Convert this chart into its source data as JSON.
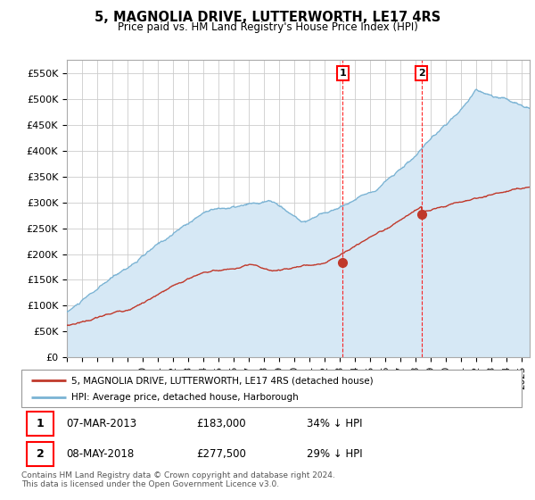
{
  "title": "5, MAGNOLIA DRIVE, LUTTERWORTH, LE17 4RS",
  "subtitle": "Price paid vs. HM Land Registry's House Price Index (HPI)",
  "ylabel_ticks": [
    "£0",
    "£50K",
    "£100K",
    "£150K",
    "£200K",
    "£250K",
    "£300K",
    "£350K",
    "£400K",
    "£450K",
    "£500K",
    "£550K"
  ],
  "ylabel_values": [
    0,
    50000,
    100000,
    150000,
    200000,
    250000,
    300000,
    350000,
    400000,
    450000,
    500000,
    550000
  ],
  "ylim": [
    0,
    575000
  ],
  "xlim_left": 1995.0,
  "xlim_right": 2025.5,
  "hpi_color": "#7ab3d4",
  "price_color": "#c0392b",
  "hpi_fill_color": "#d6e8f5",
  "annotation_color": "#c0392b",
  "point1_x": 2013.18,
  "point1_y": 183000,
  "point2_x": 2018.37,
  "point2_y": 277500,
  "legend_house": "5, MAGNOLIA DRIVE, LUTTERWORTH, LE17 4RS (detached house)",
  "legend_hpi": "HPI: Average price, detached house, Harborough",
  "table_row1": [
    "1",
    "07-MAR-2013",
    "£183,000",
    "34% ↓ HPI"
  ],
  "table_row2": [
    "2",
    "08-MAY-2018",
    "£277,500",
    "29% ↓ HPI"
  ],
  "footer": "Contains HM Land Registry data © Crown copyright and database right 2024.\nThis data is licensed under the Open Government Licence v3.0.",
  "grid_color": "#cccccc",
  "hpi_seed": 10,
  "price_seed": 20
}
